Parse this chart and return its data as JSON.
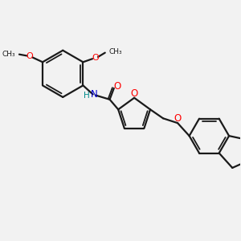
{
  "background_color": "#f2f2f2",
  "bond_color": "#1a1a1a",
  "oxygen_color": "#ff0000",
  "nitrogen_color": "#0000cd",
  "hydrogen_color": "#008b8b",
  "line_width": 1.6,
  "figsize": [
    3.0,
    3.0
  ],
  "dpi": 100,
  "xlim": [
    0,
    10
  ],
  "ylim": [
    0,
    10
  ]
}
